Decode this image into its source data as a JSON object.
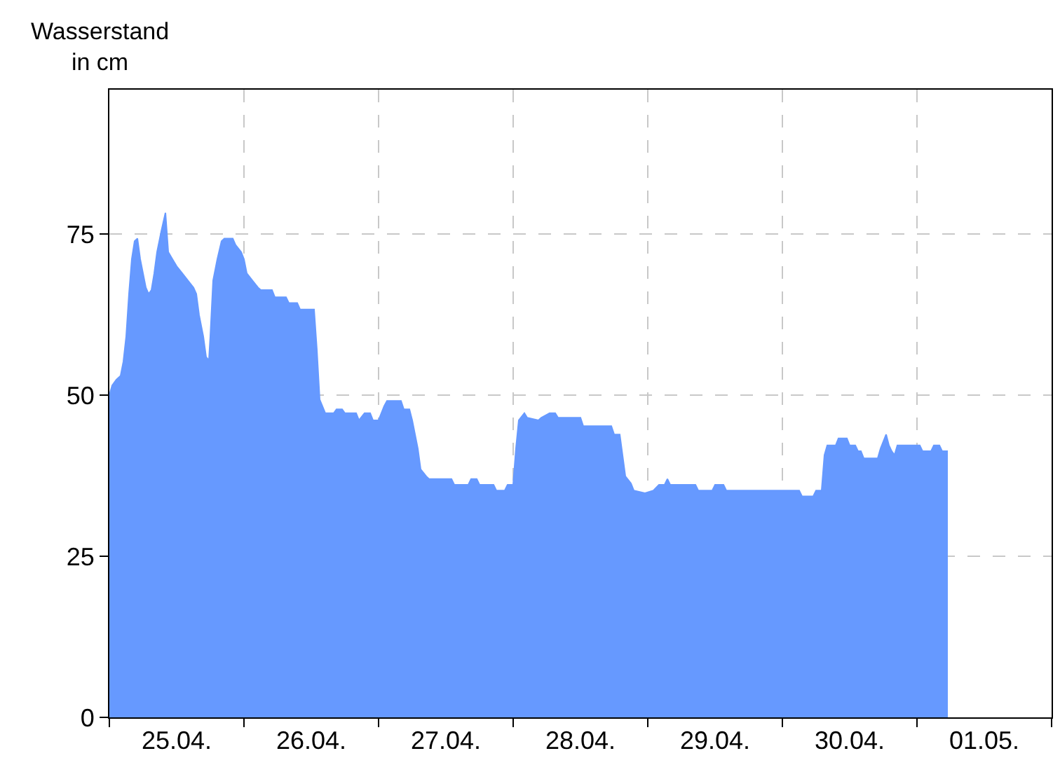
{
  "chart_data": {
    "type": "area",
    "ylabel": "Wasserstand\nin cm",
    "color": "#6699ff",
    "x": [
      "--04-25T00:00",
      "--04-25T00:30",
      "--04-25T01:15",
      "--04-25T02:00",
      "--04-25T02:30",
      "--04-25T03:00",
      "--04-25T03:30",
      "--04-25T04:00",
      "--04-25T04:30",
      "--04-25T05:00",
      "--04-25T05:30",
      "--04-25T06:00",
      "--04-25T06:30",
      "--04-25T07:00",
      "--04-25T07:30",
      "--04-25T08:00",
      "--04-25T08:30",
      "--04-25T09:15",
      "--04-25T10:00",
      "--04-25T10:30",
      "--04-25T11:15",
      "--04-25T12:00",
      "--04-25T13:00",
      "--04-25T14:00",
      "--04-25T15:00",
      "--04-25T15:30",
      "--04-25T16:00",
      "--04-25T16:45",
      "--04-25T17:15",
      "--04-25T17:45",
      "--04-25T18:00",
      "--04-25T18:30",
      "--04-25T19:15",
      "--04-25T20:00",
      "--04-25T20:30",
      "--04-25T22:00",
      "--04-25T22:30",
      "--04-25T23:30",
      "--04-26T00:00",
      "--04-26T00:30",
      "--04-26T01:30",
      "--04-26T02:30",
      "--04-26T03:00",
      "--04-26T05:00",
      "--04-26T05:30",
      "--04-26T07:30",
      "--04-26T08:00",
      "--04-26T09:30",
      "--04-26T10:00",
      "--04-26T12:30",
      "--04-26T13:00",
      "--04-26T13:30",
      "--04-26T14:30",
      "--04-26T16:00",
      "--04-26T16:30",
      "--04-26T17:30",
      "--04-26T18:00",
      "--04-26T20:00",
      "--04-26T20:30",
      "--04-26T21:30",
      "--04-26T22:30",
      "--04-26T23:00",
      "--04-27T00:00",
      "--04-27T01:00",
      "--04-27T01:30",
      "--04-27T04:00",
      "--04-27T04:30",
      "--04-27T05:30",
      "--04-27T06:00",
      "--04-27T07:00",
      "--04-27T07:30",
      "--04-27T08:30",
      "--04-27T09:00",
      "--04-27T13:00",
      "--04-27T13:30",
      "--04-27T16:00",
      "--04-27T16:30",
      "--04-27T17:30",
      "--04-27T18:00",
      "--04-27T20:30",
      "--04-27T21:00",
      "--04-27T22:30",
      "--04-27T23:00",
      "--04-28T00:00",
      "--04-28T00:30",
      "--04-28T01:00",
      "--04-28T02:00",
      "--04-28T02:30",
      "--04-28T04:30",
      "--04-28T05:00",
      "--04-28T06:30",
      "--04-28T07:30",
      "--04-28T08:00",
      "--04-28T12:00",
      "--04-28T12:30",
      "--04-28T17:30",
      "--04-28T18:00",
      "--04-28T19:00",
      "--04-28T20:00",
      "--04-28T21:00",
      "--04-28T21:30",
      "--04-28T23:30",
      "--04-29T01:00",
      "--04-29T02:00",
      "--04-29T03:00",
      "--04-29T03:30",
      "--04-29T04:00",
      "--04-29T08:30",
      "--04-29T09:00",
      "--04-29T11:30",
      "--04-29T12:00",
      "--04-29T13:30",
      "--04-29T14:00",
      "--04-30T03:00",
      "--04-30T03:30",
      "--04-30T05:30",
      "--04-30T06:00",
      "--04-30T07:00",
      "--04-30T07:30",
      "--04-30T08:00",
      "--04-30T09:30",
      "--04-30T10:00",
      "--04-30T11:30",
      "--04-30T12:00",
      "--04-30T13:00",
      "--04-30T13:30",
      "--04-30T14:00",
      "--04-30T14:30",
      "--04-30T17:00",
      "--04-30T17:30",
      "--04-30T18:30",
      "--04-30T19:00",
      "--04-30T19:30",
      "--04-30T20:00",
      "--04-30T20:30",
      "--05-01T00:30",
      "--05-01T01:00",
      "--05-01T02:30",
      "--05-01T03:00",
      "--05-01T04:00",
      "--05-01T04:30",
      "--05-01T05:30"
    ],
    "values": [
      50,
      51.5,
      52.4,
      53,
      55.2,
      59.1,
      65.7,
      71.1,
      73.9,
      74.3,
      71.1,
      68.9,
      66.7,
      65.7,
      66.3,
      68.9,
      72.2,
      75.4,
      78.3,
      72.2,
      71.1,
      70,
      68.9,
      67.8,
      66.7,
      65.7,
      62.4,
      59.1,
      55.9,
      55.4,
      59.1,
      67.8,
      71.1,
      73.9,
      74.3,
      74.3,
      73.3,
      72.2,
      71.1,
      68.9,
      67.8,
      66.7,
      66.3,
      66.3,
      65.2,
      65.2,
      64.3,
      64.3,
      63.3,
      63.3,
      57,
      49.3,
      47.2,
      47.2,
      47.8,
      47.8,
      47.2,
      47.2,
      46.1,
      47.2,
      47.2,
      46.1,
      46.1,
      48.3,
      49.1,
      49.1,
      47.8,
      47.8,
      46.1,
      41.7,
      38.5,
      37.4,
      37,
      37,
      36.1,
      36.1,
      37,
      37,
      36.1,
      36.1,
      35.2,
      35.2,
      36.1,
      36.1,
      41.7,
      46.1,
      47.2,
      46.5,
      46.1,
      46.5,
      47.2,
      47.2,
      46.5,
      46.5,
      45.2,
      45.2,
      43.9,
      43.9,
      37.4,
      36.3,
      35.2,
      34.8,
      35.2,
      36.1,
      36.1,
      37,
      36.1,
      36.1,
      35.2,
      35.2,
      36.1,
      36.1,
      35.2,
      35.2,
      34.3,
      34.3,
      35.2,
      35.2,
      40.7,
      42.2,
      42.2,
      43.3,
      43.3,
      42.2,
      42.2,
      41.3,
      41.3,
      40.2,
      40.2,
      41.7,
      43.9,
      42.2,
      41.3,
      40.7,
      42.2,
      42.2,
      41.3,
      41.3,
      42.2,
      42.2,
      41.3,
      41.3
    ],
    "xlim": [
      "--04-25",
      "--05-02"
    ],
    "xticks": [
      {
        "value": "--04-25",
        "label": null
      },
      {
        "value": "--04-25T12:00",
        "label": "25.04."
      },
      {
        "value": "--04-26",
        "label": null
      },
      {
        "value": "--04-26T12:00",
        "label": "26.04."
      },
      {
        "value": "--04-27",
        "label": null
      },
      {
        "value": "--04-27T12:00",
        "label": "27.04."
      },
      {
        "value": "--04-28",
        "label": null
      },
      {
        "value": "--04-28T12:00",
        "label": "28.04."
      },
      {
        "value": "--04-29",
        "label": null
      },
      {
        "value": "--04-29T12:00",
        "label": "29.04."
      },
      {
        "value": "--04-30",
        "label": null
      },
      {
        "value": "--04-30T12:00",
        "label": "30.04."
      },
      {
        "value": "--05-01",
        "label": null
      },
      {
        "value": "--05-01T12:00",
        "label": "01.05."
      },
      {
        "value": "--05-02",
        "label": null
      }
    ],
    "ylim": [
      0,
      97.4
    ],
    "yticks": [
      0,
      25,
      50,
      75
    ],
    "grid": true,
    "line_style": "dashed"
  }
}
